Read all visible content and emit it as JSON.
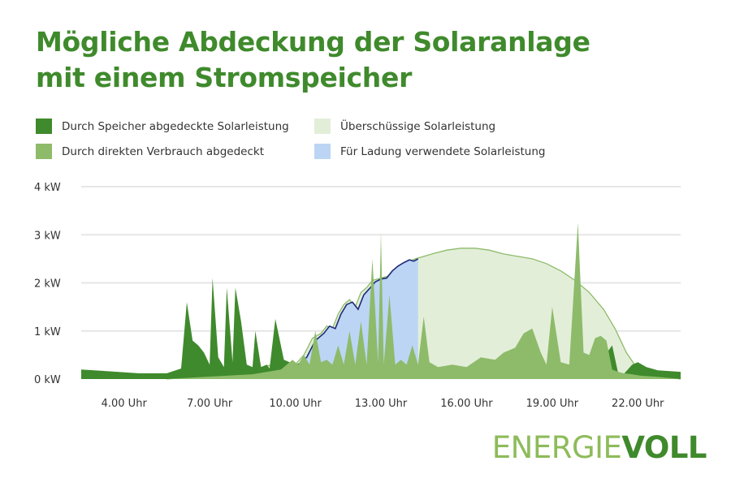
{
  "title_line1": "Mögliche Abdeckung der Solaranlage",
  "title_line2": "mit einem Stromspeicher",
  "legend": [
    {
      "label": "Durch Speicher abgedeckte Solarleistung",
      "color": "#3f8a2c"
    },
    {
      "label": "Überschüssige Solarleistung",
      "color": "#e3eed9"
    },
    {
      "label": "Durch direkten Verbrauch abgedeckt",
      "color": "#8dbb6a"
    },
    {
      "label": "Für Ladung verwendete Solarleistung",
      "color": "#bcd5f4"
    }
  ],
  "logo": {
    "part1": "ENERGIE",
    "part2": "VOLL"
  },
  "chart_data": {
    "type": "area",
    "xlabel": "",
    "ylabel": "",
    "x_range_hours": [
      2.5,
      23.5
    ],
    "ylim": [
      0,
      4
    ],
    "y_ticks": [
      0,
      1,
      2,
      3,
      4
    ],
    "y_tick_labels": [
      "0 kW",
      "1 kW",
      "2 kW",
      "3 kW",
      "4 kW"
    ],
    "x_ticks": [
      4,
      7,
      10,
      13,
      16,
      19,
      22
    ],
    "x_tick_labels": [
      "4.00 Uhr",
      "7.00 Uhr",
      "10.00 Uhr",
      "13.00 Uhr",
      "16.00 Uhr",
      "19.00 Uhr",
      "22.00 Uhr"
    ],
    "grid": true,
    "colors": {
      "battery": "#3f8a2c",
      "excess": "#e3eed9",
      "excess_line": "#8dbb6a",
      "direct": "#8dbb6a",
      "charging": "#bcd5f4",
      "charging_line": "#1e2a78",
      "grid": "#e6e6e6",
      "axis": "#333333"
    },
    "series": [
      {
        "key": "solar_production",
        "x": [
          5.5,
          6.5,
          7.5,
          8.5,
          9.2,
          9.7,
          10.0,
          10.3,
          10.6,
          10.9,
          11.1,
          11.3,
          11.5,
          11.7,
          11.9,
          12.1,
          12.3,
          12.5,
          12.7,
          13.0,
          13.3,
          13.6,
          13.9,
          14.2,
          14.5,
          14.9,
          15.3,
          15.8,
          16.3,
          16.8,
          17.3,
          17.8,
          18.3,
          18.8,
          19.3,
          19.8,
          20.3,
          20.8,
          21.2,
          21.6,
          22.0,
          22.5,
          23.5
        ],
        "y": [
          0.0,
          0.05,
          0.1,
          0.2,
          0.3,
          0.35,
          0.3,
          0.5,
          0.85,
          0.95,
          1.1,
          1.05,
          1.35,
          1.55,
          1.65,
          1.5,
          1.8,
          1.9,
          2.05,
          2.1,
          2.15,
          2.3,
          2.42,
          2.5,
          2.55,
          2.62,
          2.68,
          2.72,
          2.72,
          2.68,
          2.6,
          2.55,
          2.5,
          2.4,
          2.25,
          2.05,
          1.8,
          1.45,
          1.05,
          0.55,
          0.2,
          0.08,
          0.0
        ]
      },
      {
        "key": "battery_covered",
        "x": [
          2.5,
          3.5,
          4.5,
          5.5,
          6.0,
          6.2,
          6.4,
          6.6,
          6.8,
          7.0,
          7.1,
          7.3,
          7.5,
          7.6,
          7.8,
          7.9,
          8.1,
          8.3,
          8.5,
          8.6,
          8.8,
          9.0,
          9.1,
          9.3,
          9.6,
          9.8,
          10.0,
          10.5,
          11.0,
          20.6,
          20.8,
          21.1,
          21.3,
          21.5,
          21.8,
          22.0,
          22.3,
          22.7,
          23.5
        ],
        "y": [
          0.2,
          0.16,
          0.12,
          0.12,
          0.22,
          1.6,
          0.8,
          0.7,
          0.55,
          0.3,
          2.1,
          0.45,
          0.25,
          1.9,
          0.35,
          1.9,
          1.2,
          0.3,
          0.25,
          1.0,
          0.25,
          0.3,
          0.22,
          1.25,
          0.4,
          0.35,
          0.3,
          0.2,
          0.0,
          0.0,
          0.45,
          0.7,
          0.15,
          0.1,
          0.3,
          0.35,
          0.25,
          0.18,
          0.15
        ]
      },
      {
        "key": "direct_consumption",
        "x": [
          5.5,
          7.0,
          8.5,
          9.5,
          9.9,
          10.1,
          10.3,
          10.5,
          10.7,
          10.9,
          11.1,
          11.3,
          11.5,
          11.7,
          11.9,
          12.1,
          12.3,
          12.5,
          12.7,
          12.9,
          13.0,
          13.1,
          13.3,
          13.5,
          13.7,
          13.9,
          14.1,
          14.3,
          14.5,
          14.7,
          15.0,
          15.5,
          16.0,
          16.5,
          17.0,
          17.3,
          17.7,
          18.0,
          18.3,
          18.6,
          18.8,
          19.0,
          19.3,
          19.6,
          19.9,
          20.1,
          20.3,
          20.5,
          20.7,
          20.9,
          21.1,
          21.3,
          21.5,
          21.8,
          22.1,
          22.6,
          23.5
        ],
        "y": [
          0.0,
          0.05,
          0.1,
          0.2,
          0.4,
          0.3,
          0.5,
          0.3,
          1.0,
          0.35,
          0.4,
          0.3,
          0.7,
          0.3,
          1.0,
          0.3,
          1.2,
          0.3,
          2.5,
          0.35,
          3.05,
          0.3,
          1.75,
          0.3,
          0.4,
          0.3,
          0.7,
          0.3,
          1.3,
          0.35,
          0.25,
          0.3,
          0.25,
          0.45,
          0.4,
          0.55,
          0.65,
          0.95,
          1.05,
          0.55,
          0.3,
          1.5,
          0.35,
          0.3,
          3.25,
          0.55,
          0.5,
          0.85,
          0.9,
          0.8,
          0.2,
          0.15,
          0.12,
          0.1,
          0.07,
          0.05,
          0.0
        ]
      },
      {
        "key": "charging",
        "x": [
          9.9,
          10.1,
          10.4,
          10.7,
          11.0,
          11.2,
          11.4,
          11.6,
          11.8,
          12.0,
          12.2,
          12.4,
          12.6,
          12.8,
          13.0,
          13.2,
          13.4,
          13.6,
          13.8,
          14.0,
          14.15,
          14.3
        ],
        "y": [
          0.3,
          0.3,
          0.45,
          0.8,
          0.95,
          1.1,
          1.05,
          1.35,
          1.55,
          1.6,
          1.45,
          1.75,
          1.88,
          2.02,
          2.08,
          2.1,
          2.25,
          2.35,
          2.42,
          2.48,
          2.45,
          2.5
        ]
      }
    ]
  }
}
